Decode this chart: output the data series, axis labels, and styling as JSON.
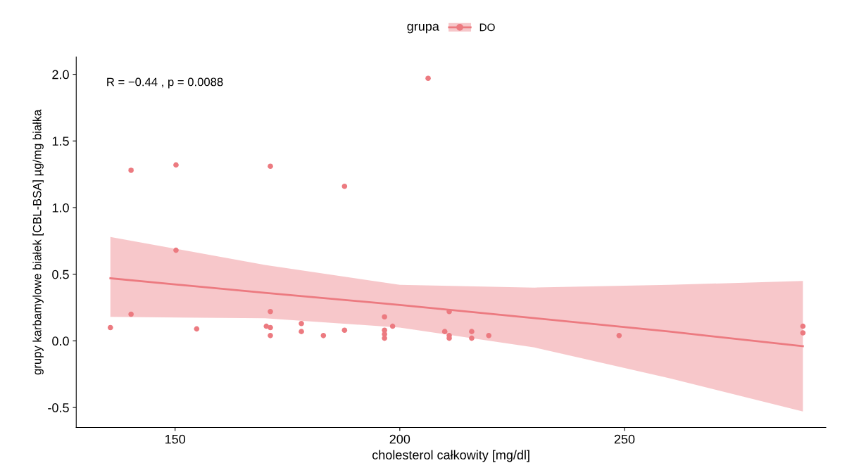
{
  "chart_data": {
    "type": "scatter",
    "xlabel": "cholesterol całkowity [mg/dl]",
    "ylabel": "grupy karbamylowe białek [CBL-BSA] µg/mg białka",
    "legend_title": "grupa",
    "legend": "top",
    "grid": false,
    "annotations": [
      "R = −0.44 , p = 0.0088"
    ],
    "xlim": [
      128,
      294.8
    ],
    "ylim": [
      -0.65,
      2.13
    ],
    "xticks": [
      150,
      200,
      250
    ],
    "yticks": [
      -0.5,
      {
        "value": 0,
        "label": "0.0"
      },
      0.5,
      {
        "value": 1,
        "label": "1.0"
      },
      1.5,
      {
        "value": 2,
        "label": "2.0"
      }
    ],
    "series": [
      {
        "name": "DO",
        "marker": "circle",
        "color": "#ec7a80",
        "x": [
          135.6,
          140.2,
          140.2,
          150.2,
          150.2,
          154.8,
          171.2,
          171.2,
          170.3,
          171.2,
          171.2,
          178.1,
          178.1,
          183,
          187.7,
          187.7,
          196.6,
          196.6,
          196.6,
          196.6,
          198.4,
          206.3,
          210,
          211,
          211,
          211,
          216,
          216,
          219.8,
          248.8,
          289.7,
          289.7
        ],
        "values": [
          0.1,
          1.28,
          0.2,
          1.32,
          0.68,
          0.09,
          1.31,
          0.22,
          0.11,
          0.1,
          0.04,
          0.13,
          0.07,
          0.04,
          1.16,
          0.08,
          0.18,
          0.08,
          0.05,
          0.02,
          0.11,
          1.97,
          0.07,
          0.22,
          0.04,
          0.02,
          0.07,
          0.02,
          0.04,
          0.04,
          0.11,
          0.06
        ]
      },
      {
        "type": "line",
        "marker": "none",
        "color": "#ec7a80",
        "x": [
          135.6,
          170,
          200,
          230,
          260,
          289.7
        ],
        "values": [
          0.47,
          0.36,
          0.27,
          0.17,
          0.07,
          -0.04
        ],
        "lower": [
          0.18,
          0.17,
          0.1,
          -0.05,
          -0.28,
          -0.53
        ],
        "upper": [
          0.78,
          0.57,
          0.42,
          0.4,
          0.42,
          0.45
        ]
      }
    ]
  }
}
